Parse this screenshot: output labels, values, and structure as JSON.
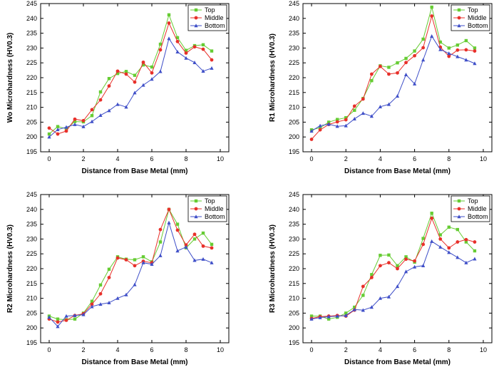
{
  "figure": {
    "colors": {
      "top": "#66cc33",
      "middle": "#e8302a",
      "bottom": "#3f4fc8",
      "axis": "#000000"
    },
    "legend_labels": [
      "Top",
      "Middle",
      "Bottom"
    ]
  },
  "chart_data": [
    {
      "type": "line",
      "xlabel": "Distance from Base Metal (mm)",
      "ylabel": "Wo Microhardness (HV0.3)",
      "xlim": [
        -0.5,
        10.5
      ],
      "ylim": [
        195,
        245
      ],
      "xticks": [
        0,
        2,
        4,
        6,
        8,
        10
      ],
      "yticks": [
        195,
        200,
        205,
        210,
        215,
        220,
        225,
        230,
        235,
        240,
        245
      ],
      "legend": "top-right",
      "x": [
        0,
        0.5,
        1,
        1.5,
        2,
        2.5,
        3,
        3.5,
        4,
        4.5,
        5,
        5.5,
        6,
        6.5,
        7,
        7.5,
        8,
        8.5,
        9,
        9.5
      ],
      "series": [
        {
          "name": "Top",
          "values": [
            201,
            203.5,
            202.8,
            205.2,
            205.1,
            207.2,
            215.2,
            219.7,
            221.4,
            222.1,
            220.8,
            224.3,
            223.6,
            231.3,
            241.2,
            233.5,
            229.2,
            230.8,
            231.1,
            229.0
          ]
        },
        {
          "name": "Middle",
          "values": [
            203,
            201,
            202,
            206,
            205.5,
            209.2,
            212.5,
            217.2,
            222.2,
            221.2,
            218.5,
            225.2,
            221.6,
            229.4,
            238.4,
            232.2,
            228.3,
            230.4,
            229.6,
            226.0
          ]
        },
        {
          "name": "Bottom",
          "values": [
            200,
            202.5,
            203.3,
            204.2,
            203.5,
            205.2,
            207.3,
            208.9,
            211,
            210.1,
            214.9,
            217.5,
            219.5,
            222.1,
            233.2,
            228.7,
            226.6,
            225.1,
            222.2,
            223.2
          ]
        }
      ]
    },
    {
      "type": "line",
      "xlabel": "Distance from Base Metal (mm)",
      "ylabel": "R1 Microhardness (HV0.3)",
      "xlim": [
        -0.5,
        10.5
      ],
      "ylim": [
        195,
        245
      ],
      "xticks": [
        0,
        2,
        4,
        6,
        8,
        10
      ],
      "yticks": [
        195,
        200,
        205,
        210,
        215,
        220,
        225,
        230,
        235,
        240,
        245
      ],
      "legend": "top-right",
      "x": [
        0,
        0.5,
        1,
        1.5,
        2,
        2.5,
        3,
        3.5,
        4,
        4.5,
        5,
        5.5,
        6,
        6.5,
        7,
        7.5,
        8,
        8.5,
        9,
        9.5
      ],
      "series": [
        {
          "name": "Top",
          "values": [
            202.4,
            203.1,
            205.0,
            205.9,
            206.5,
            209.0,
            213.0,
            219.0,
            224.0,
            223.5,
            225.0,
            226.5,
            229.0,
            233.0,
            243.8,
            232.0,
            230.0,
            231.0,
            232.5,
            230.0
          ]
        },
        {
          "name": "Middle",
          "values": [
            199.2,
            202.4,
            204.2,
            205.1,
            205.8,
            210.4,
            212.8,
            221.2,
            223.8,
            221.2,
            221.6,
            225.1,
            227.4,
            230.1,
            240.8,
            230.3,
            227.2,
            229.3,
            229.4,
            229.0
          ]
        },
        {
          "name": "Bottom",
          "values": [
            202.0,
            203.8,
            204.3,
            203.6,
            203.8,
            206.1,
            208.0,
            207.0,
            210.2,
            211.0,
            213.8,
            221.0,
            217.9,
            226.0,
            234.0,
            229.5,
            228.2,
            227.1,
            226.0,
            224.8
          ]
        }
      ]
    },
    {
      "type": "line",
      "xlabel": "Distance from Base Metal (mm)",
      "ylabel": "R2 Microhardness (HV0.3)",
      "xlim": [
        -0.5,
        10.5
      ],
      "ylim": [
        195,
        245
      ],
      "xticks": [
        0,
        2,
        4,
        6,
        8,
        10
      ],
      "yticks": [
        195,
        200,
        205,
        210,
        215,
        220,
        225,
        230,
        235,
        240,
        245
      ],
      "legend": "top-right",
      "x": [
        0,
        0.5,
        1,
        1.5,
        2,
        2.5,
        3,
        3.5,
        4,
        4.5,
        5,
        5.5,
        6,
        6.5,
        7,
        7.5,
        8,
        8.5,
        9,
        9.5
      ],
      "series": [
        {
          "name": "Top",
          "values": [
            204.0,
            203.0,
            202.8,
            203.0,
            205.0,
            209.0,
            214.5,
            219.8,
            224.0,
            223.2,
            223.0,
            224.0,
            222.3,
            229.0,
            240.0,
            235.0,
            227.0,
            230.0,
            232.0,
            228.2
          ]
        },
        {
          "name": "Middle",
          "values": [
            203.0,
            202.0,
            202.6,
            204.2,
            204.8,
            208.0,
            211.5,
            217.0,
            223.6,
            223.0,
            221.0,
            222.5,
            222.0,
            233.2,
            240.0,
            233.0,
            228.0,
            231.6,
            227.6,
            227.0
          ]
        },
        {
          "name": "Bottom",
          "values": [
            203.6,
            200.5,
            204.0,
            204.2,
            204.5,
            207.2,
            208.0,
            208.5,
            210.0,
            211.2,
            214.6,
            222.0,
            221.5,
            224.4,
            235.5,
            226.0,
            227.3,
            222.8,
            223.2,
            222.0
          ]
        }
      ]
    },
    {
      "type": "line",
      "xlabel": "Distance from Base Metal (mm)",
      "ylabel": "R3 Microhardness (HV0.3)",
      "xlim": [
        -0.5,
        10.5
      ],
      "ylim": [
        195,
        245
      ],
      "xticks": [
        0,
        2,
        4,
        6,
        8,
        10
      ],
      "yticks": [
        195,
        200,
        205,
        210,
        215,
        220,
        225,
        230,
        235,
        240,
        245
      ],
      "legend": "top-right",
      "x": [
        0,
        0.5,
        1,
        1.5,
        2,
        2.5,
        3,
        3.5,
        4,
        4.5,
        5,
        5.5,
        6,
        6.5,
        7,
        7.5,
        8,
        8.5,
        9,
        9.5
      ],
      "series": [
        {
          "name": "Top",
          "values": [
            204.0,
            204.0,
            203.0,
            203.6,
            205.0,
            207.0,
            211.0,
            218.0,
            224.5,
            224.6,
            221.0,
            224.0,
            222.2,
            230.2,
            238.7,
            231.4,
            234.0,
            233.2,
            229.0,
            226.0
          ]
        },
        {
          "name": "Middle",
          "values": [
            203.2,
            203.8,
            204.0,
            204.2,
            204.0,
            206.0,
            214.0,
            217.0,
            221.0,
            222.0,
            220.0,
            223.2,
            222.6,
            228.2,
            237.0,
            230.0,
            227.0,
            229.0,
            229.8,
            229.0
          ]
        },
        {
          "name": "Bottom",
          "values": [
            203.0,
            203.5,
            203.8,
            204.0,
            204.2,
            206.2,
            206.0,
            207.0,
            210.0,
            210.5,
            214.0,
            219.0,
            220.6,
            221.0,
            229.2,
            227.3,
            225.5,
            223.8,
            222.0,
            223.3
          ]
        }
      ]
    }
  ]
}
